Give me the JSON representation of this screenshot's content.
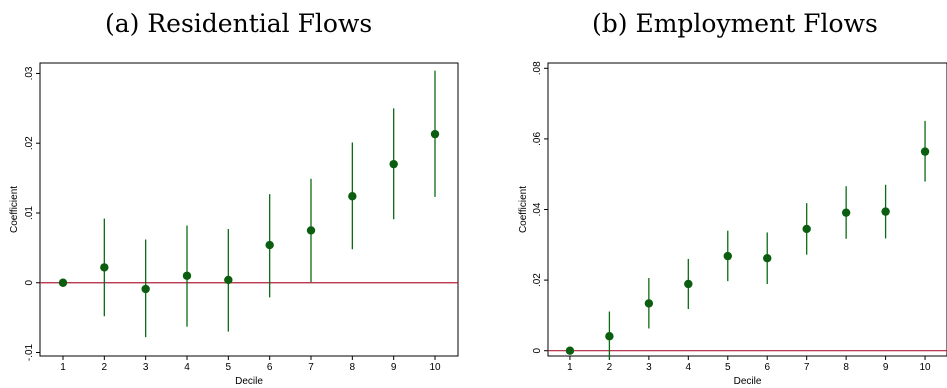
{
  "panels": {
    "a": {
      "title": "(a) Residential Flows"
    },
    "b": {
      "title": "(b) Employment Flows"
    }
  },
  "colors": {
    "point": "#0b5e0f",
    "ci": "#0b6b12",
    "zero_line": "#b0203a"
  },
  "chart_data": [
    {
      "type": "scatter",
      "title": "(a) Residential Flows",
      "xlabel": "Decile",
      "ylabel": "Coefficient",
      "x": [
        1,
        2,
        3,
        4,
        5,
        6,
        7,
        8,
        9,
        10
      ],
      "x_ticks": [
        "1",
        "2",
        "3",
        "4",
        "5",
        "6",
        "7",
        "8",
        "9",
        "10"
      ],
      "y_ticks": [
        -0.01,
        0,
        0.01,
        0.02,
        0.03
      ],
      "y_tick_labels": [
        "-.01",
        "0",
        ".01",
        ".02",
        ".03"
      ],
      "ylim": [
        -0.0105,
        0.0315
      ],
      "series": [
        {
          "values": [
            0.0,
            0.0022,
            -0.0009,
            0.001,
            0.0004,
            0.0054,
            0.0075,
            0.0124,
            0.017,
            0.0213
          ],
          "ci_low": [
            0.0,
            -0.0048,
            -0.0078,
            -0.0063,
            -0.007,
            -0.0021,
            0.0001,
            0.0048,
            0.0091,
            0.0123
          ],
          "ci_high": [
            0.0,
            0.0092,
            0.0062,
            0.0082,
            0.0077,
            0.0127,
            0.0149,
            0.0201,
            0.025,
            0.0304
          ]
        }
      ],
      "reference_line": 0,
      "grid": false
    },
    {
      "type": "scatter",
      "title": "(b) Employment Flows",
      "xlabel": "Decile",
      "ylabel": "Coefficient",
      "x": [
        1,
        2,
        3,
        4,
        5,
        6,
        7,
        8,
        9,
        10
      ],
      "x_ticks": [
        "1",
        "2",
        "3",
        "4",
        "5",
        "6",
        "7",
        "8",
        "9",
        "10"
      ],
      "y_ticks": [
        0,
        0.02,
        0.04,
        0.06,
        0.08
      ],
      "y_tick_labels": [
        "0",
        ".02",
        ".04",
        ".06",
        ".08"
      ],
      "ylim": [
        -0.0015,
        0.0815
      ],
      "series": [
        {
          "values": [
            0.0,
            0.0041,
            0.0134,
            0.0189,
            0.0268,
            0.0262,
            0.0345,
            0.0391,
            0.0394,
            0.0564
          ],
          "ci_low": [
            0.0,
            -0.0025,
            0.0063,
            0.0118,
            0.0197,
            0.0189,
            0.0272,
            0.0317,
            0.0318,
            0.0479
          ],
          "ci_high": [
            0.0,
            0.0111,
            0.0206,
            0.026,
            0.034,
            0.0335,
            0.0418,
            0.0466,
            0.047,
            0.0651
          ]
        }
      ],
      "reference_line": 0,
      "grid": false
    }
  ]
}
